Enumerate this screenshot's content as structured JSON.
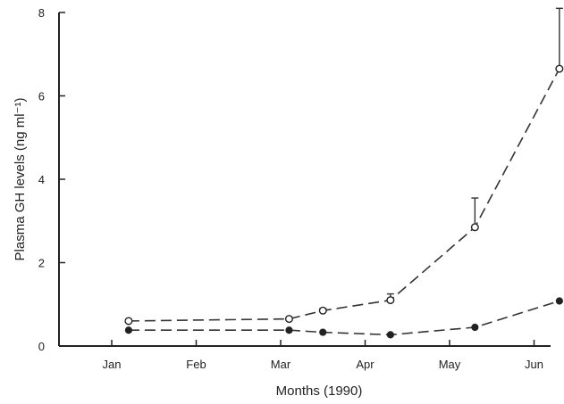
{
  "chart_data": {
    "type": "line",
    "title": "",
    "xlabel": "Months (1990)",
    "ylabel": "Plasma GH levels (ng ml⁻¹)",
    "x_categories": [
      "Jan",
      "Feb",
      "Mar",
      "Apr",
      "May",
      "Jun"
    ],
    "ylim": [
      0,
      8
    ],
    "yticks": [
      0,
      2,
      4,
      6,
      8
    ],
    "grid": false,
    "series": [
      {
        "marker": "open-circle",
        "points": [
          {
            "month": 1.2,
            "y": 0.6
          },
          {
            "month": 3.1,
            "y": 0.65
          },
          {
            "month": 3.5,
            "y": 0.85,
            "err": 0.05
          },
          {
            "month": 4.3,
            "y": 1.1,
            "err": 0.15
          },
          {
            "month": 5.3,
            "y": 2.85,
            "err": 0.7
          },
          {
            "month": 6.3,
            "y": 6.65,
            "err": 1.45
          }
        ]
      },
      {
        "marker": "filled-circle",
        "points": [
          {
            "month": 1.2,
            "y": 0.38
          },
          {
            "month": 3.1,
            "y": 0.38
          },
          {
            "month": 3.5,
            "y": 0.33
          },
          {
            "month": 4.3,
            "y": 0.27
          },
          {
            "month": 5.3,
            "y": 0.45
          },
          {
            "month": 6.3,
            "y": 1.08
          }
        ]
      }
    ]
  }
}
